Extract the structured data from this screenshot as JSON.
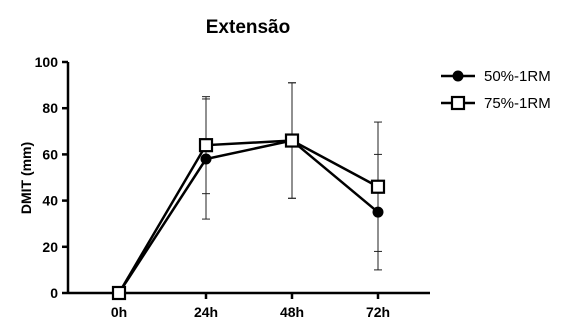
{
  "chart_data": {
    "type": "line",
    "title": "Extensão",
    "xlabel": "",
    "ylabel": "DMIT (mm)",
    "categories": [
      "0h",
      "24h",
      "48h",
      "72h"
    ],
    "ylim": [
      0,
      100
    ],
    "yticks": [
      0,
      20,
      40,
      60,
      80,
      100
    ],
    "grid": false,
    "legend_position": "top-right",
    "series": [
      {
        "name": "50%-1RM",
        "marker": "filled-circle",
        "color": "#000000",
        "values": [
          0,
          58,
          66,
          35
        ],
        "err": [
          0,
          26,
          25,
          25
        ]
      },
      {
        "name": "75%-1RM",
        "marker": "open-square",
        "color": "#000000",
        "values": [
          0,
          64,
          66,
          46
        ],
        "err": [
          0,
          21,
          25,
          28
        ]
      }
    ]
  }
}
